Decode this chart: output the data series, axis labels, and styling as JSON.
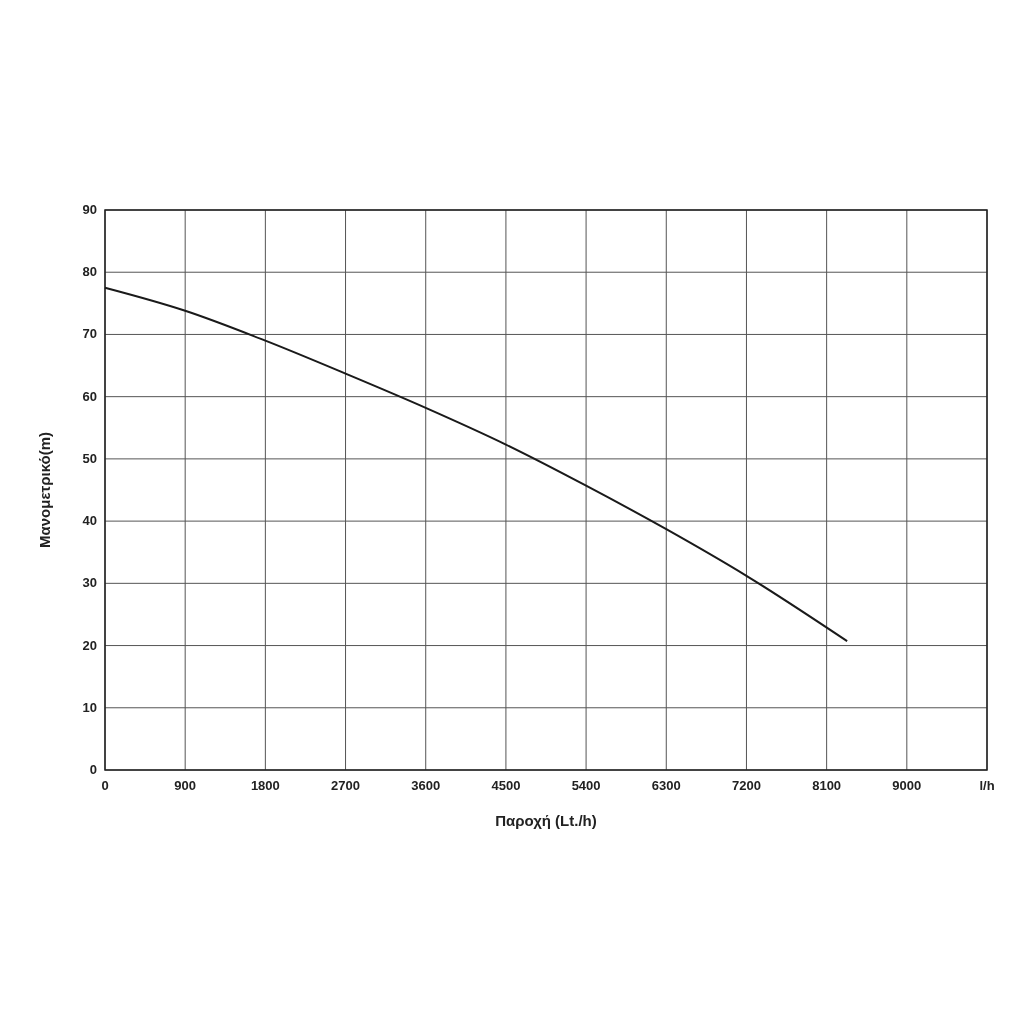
{
  "chart_data": {
    "type": "line",
    "xlabel": "Παροχή (Lt./h)",
    "ylabel": "Μανομετρικό(m)",
    "xlim": [
      0,
      9900
    ],
    "xticks": [
      0,
      900,
      1800,
      2700,
      3600,
      4500,
      5400,
      6300,
      7200,
      8100,
      9000,
      {
        "value": 9900,
        "label": "l/h"
      }
    ],
    "ylim": [
      0,
      90
    ],
    "yticks": [
      0,
      10,
      20,
      30,
      40,
      50,
      60,
      70,
      80,
      90
    ],
    "grid": true,
    "series": [
      {
        "color": "#1a1a1a",
        "x": [
          0,
          900,
          1800,
          2700,
          3600,
          4500,
          5400,
          6300,
          7200,
          8330
        ],
        "values": [
          77.5,
          73.8,
          69,
          63.7,
          58.2,
          52.3,
          45.7,
          38.7,
          31.2,
          20.7
        ]
      }
    ]
  }
}
